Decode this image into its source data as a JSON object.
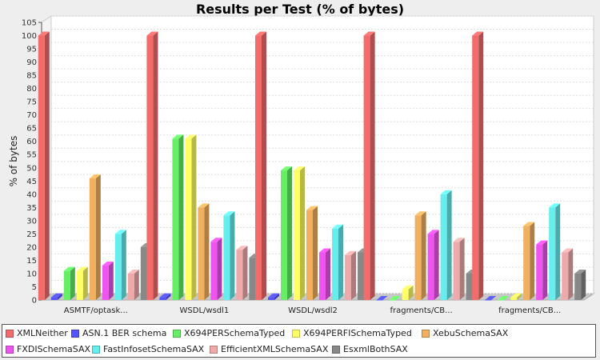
{
  "chart_data": {
    "type": "bar",
    "title": "Results per Test (% of bytes)",
    "ylabel": "% of bytes",
    "xlabel": "",
    "ylim": [
      0,
      105
    ],
    "ytick_step": 5,
    "grid": true,
    "legend_position": "bottom",
    "categories": [
      "ASMTF/optask...",
      "WSDL/wsdl1",
      "WSDL/wsdl2",
      "fragments/CB...",
      "fragments/CB..."
    ],
    "series": [
      {
        "name": "XMLNeither",
        "color": "#f26c6c",
        "values": [
          100,
          100,
          100,
          100,
          100
        ]
      },
      {
        "name": "ASN.1 BER schema",
        "color": "#5555ff",
        "values": [
          1,
          1,
          1,
          0,
          0
        ]
      },
      {
        "name": "X694PERSchemaTyped",
        "color": "#66ee66",
        "values": [
          11,
          61,
          49,
          0,
          0
        ]
      },
      {
        "name": "X694PERFISchemaTyped",
        "color": "#ffff66",
        "values": [
          11,
          61,
          49,
          4,
          1
        ]
      },
      {
        "name": "XebuSchemaSAX",
        "color": "#f0b060",
        "values": [
          46,
          35,
          34,
          32,
          28
        ]
      },
      {
        "name": "FXDISchemaSAX",
        "color": "#ee55ee",
        "values": [
          13,
          22,
          18,
          25,
          21
        ]
      },
      {
        "name": "FastInfosetSchemaSAX",
        "color": "#66eeee",
        "values": [
          25,
          32,
          27,
          40,
          35
        ]
      },
      {
        "name": "EfficientXMLSchemaSAX",
        "color": "#eeaaaa",
        "values": [
          10,
          19,
          17,
          22,
          18
        ]
      },
      {
        "name": "EsxmlBothSAX",
        "color": "#888888",
        "values": [
          20,
          16,
          18,
          10,
          10
        ]
      }
    ]
  }
}
